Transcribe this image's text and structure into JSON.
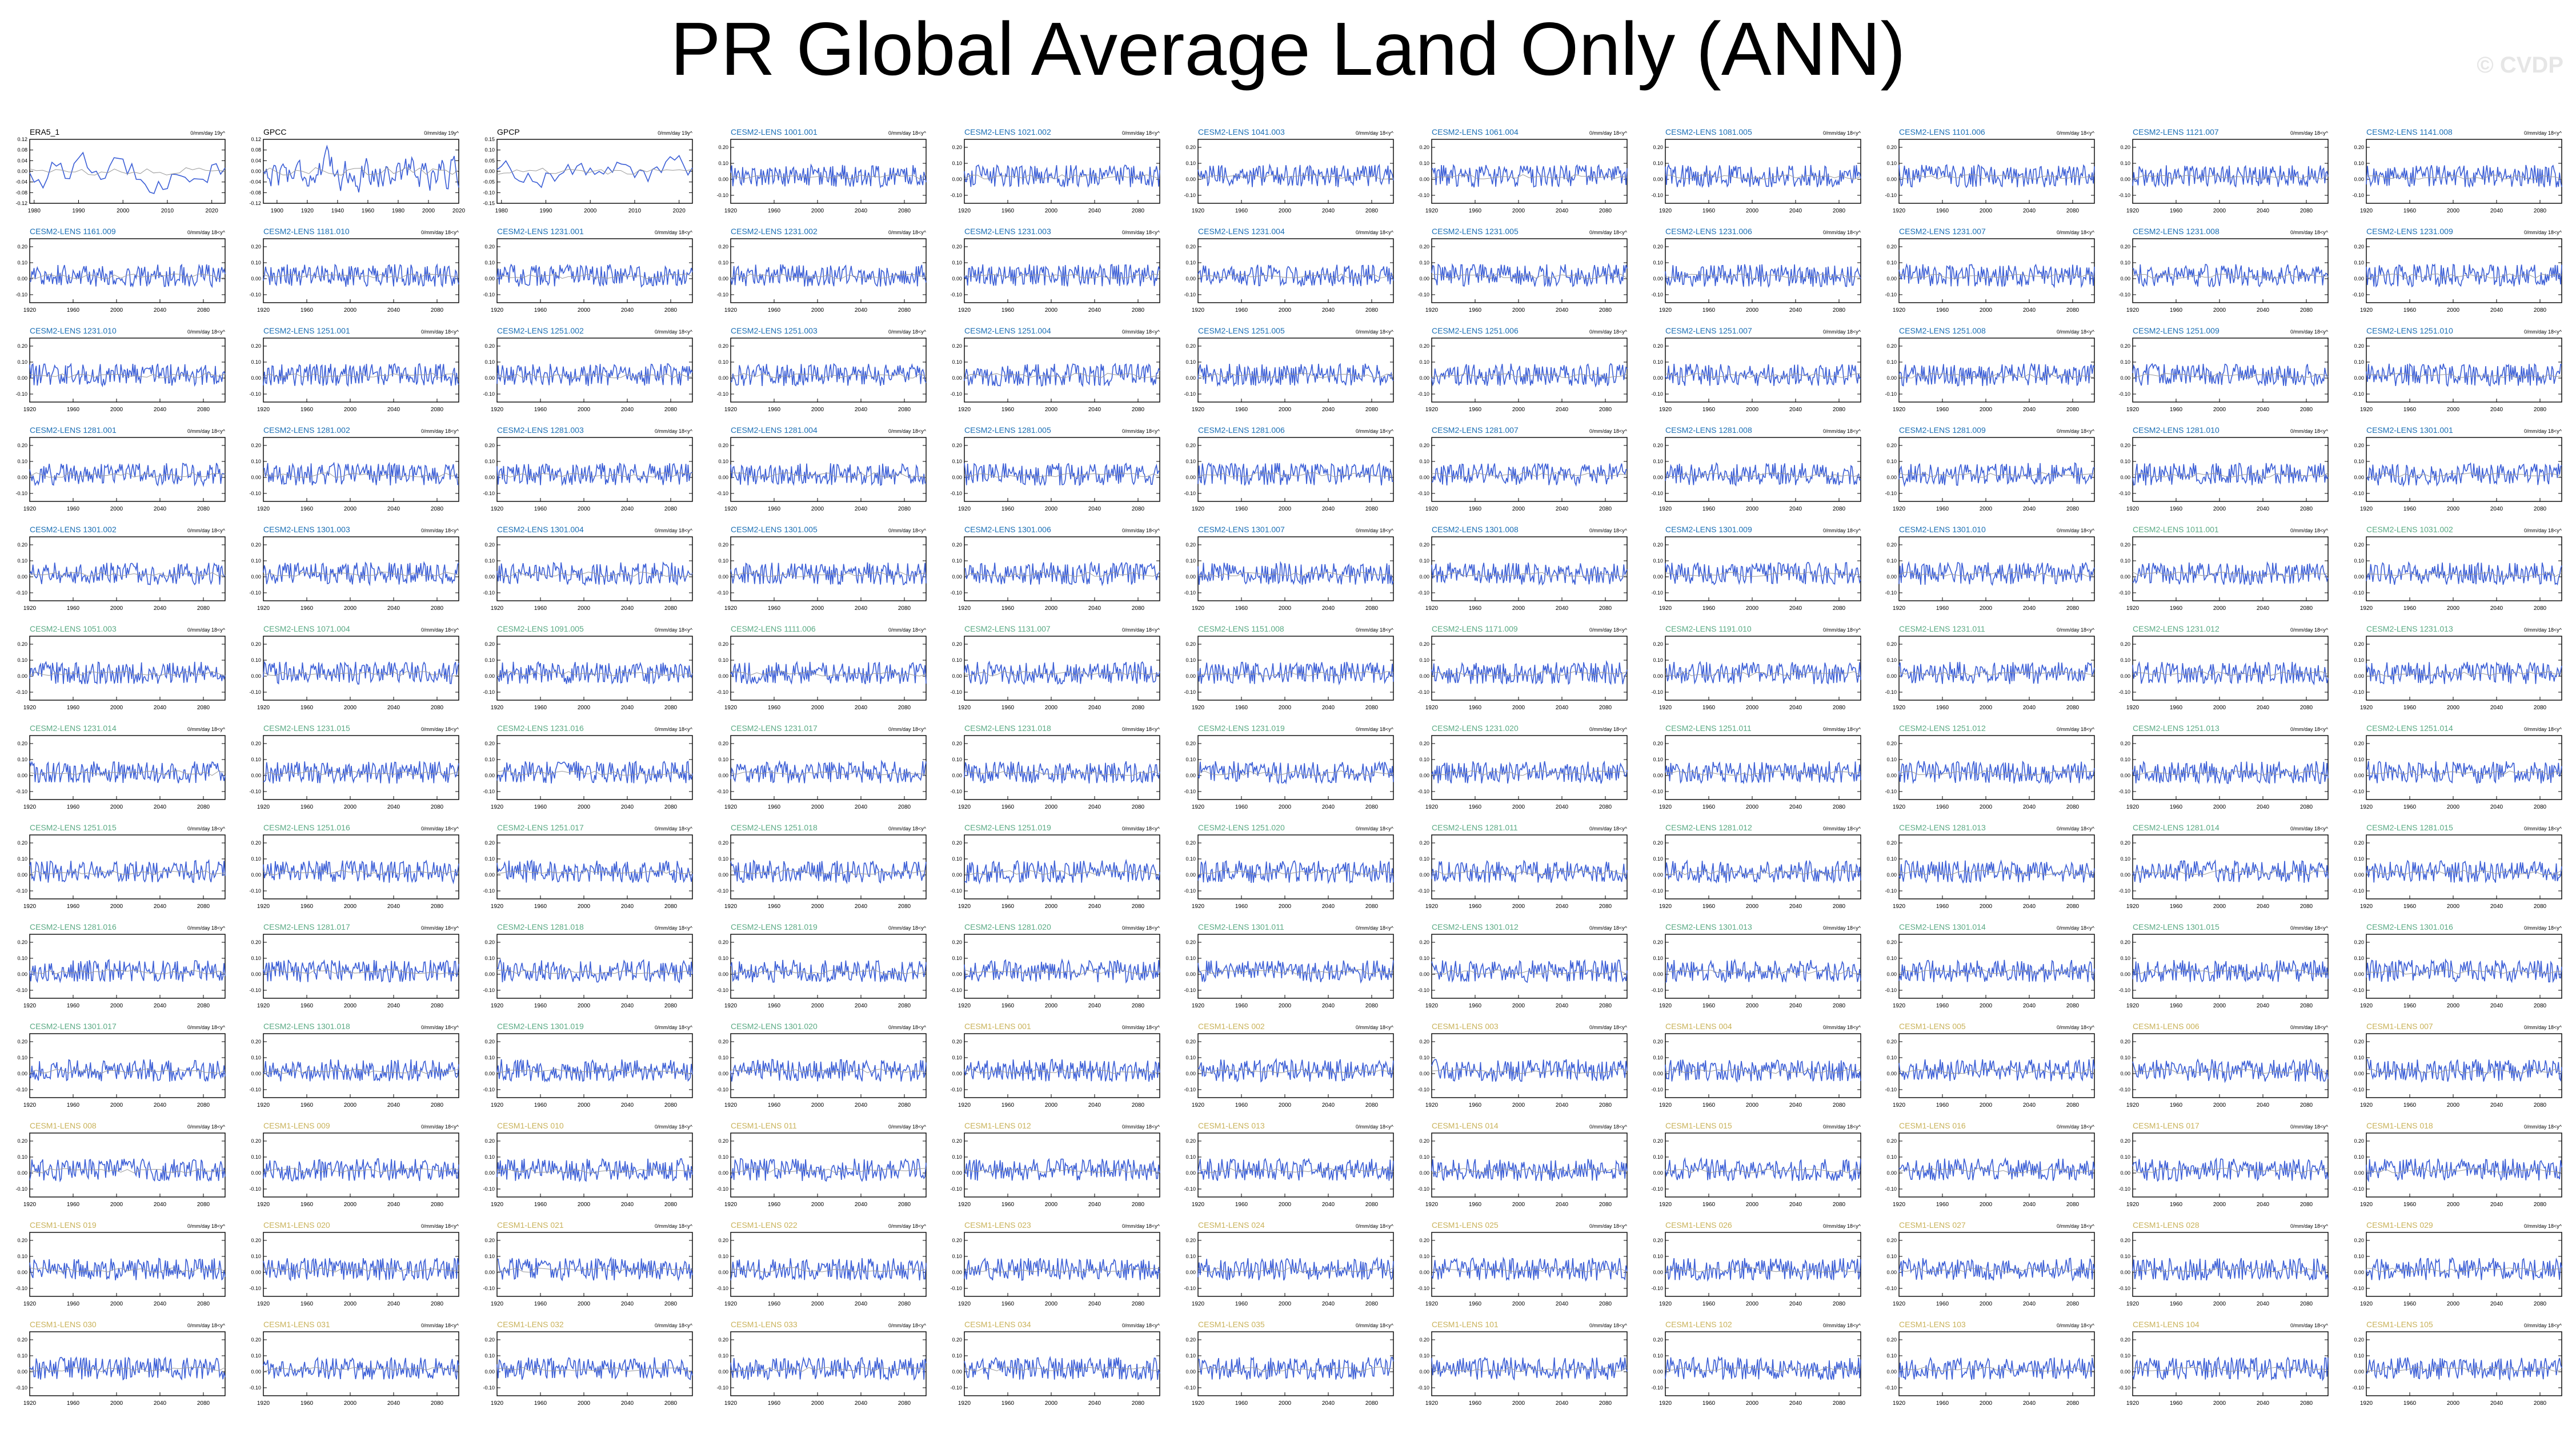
{
  "title": "PR Global Average Land Only (ANN)",
  "credit": "© CVDP",
  "units_obs": "0/mm/day 19y^",
  "units_model": "0/mm/day 18<y^",
  "colors": {
    "series": "#3b5ed6",
    "title_obs": "#000000",
    "title_blue": "#1b6fb5",
    "title_green": "#5aaa84",
    "title_yellow": "#c9b25a",
    "title_lightgreen": "#99c88f",
    "frame": "#000000"
  },
  "chart_data": [
    {
      "type": "line",
      "title": "ERA5_1",
      "title_color": "obs",
      "xticks": [
        1980,
        1990,
        2000,
        2010,
        2020
      ],
      "xlim": [
        1979,
        2023
      ],
      "ylim": [
        -0.12,
        0.12
      ],
      "yticks": [
        -0.12,
        -0.08,
        -0.04,
        0,
        0.04,
        0.08,
        0.12
      ],
      "ytick_labels": [
        "-0.12",
        "-0.08",
        "-0.04",
        "0.00",
        "0.04",
        "0.08",
        "0.12"
      ]
    },
    {
      "type": "line",
      "title": "GPCC",
      "title_color": "obs",
      "xticks": [
        1900,
        1920,
        1940,
        1960,
        1980,
        2000,
        2020
      ],
      "xlim": [
        1891,
        2020
      ],
      "ylim": [
        -0.12,
        0.12
      ],
      "yticks": [
        -0.12,
        -0.08,
        -0.04,
        0,
        0.04,
        0.08,
        0.12
      ],
      "ytick_labels": [
        "-0.12",
        "-0.08",
        "-0.04",
        "0.00",
        "0.04",
        "0.08",
        "0.12"
      ]
    },
    {
      "type": "line",
      "title": "GPCP",
      "title_color": "obs",
      "xticks": [
        1980,
        1990,
        2000,
        2010,
        2020
      ],
      "xlim": [
        1979,
        2023
      ],
      "ylim": [
        -0.15,
        0.15
      ],
      "yticks": [
        -0.15,
        -0.1,
        -0.05,
        0,
        0.05,
        0.1,
        0.15
      ],
      "ytick_labels": [
        "-0.15",
        "-0.10",
        "-0.05",
        "0.00",
        "0.05",
        "0.10",
        "0.15"
      ]
    },
    {
      "type": "line",
      "title": "CESM2-LENS 1001.001",
      "title_color": "blue"
    },
    {
      "type": "line",
      "title": "CESM2-LENS 1021.002",
      "title_color": "blue"
    },
    {
      "type": "line",
      "title": "CESM2-LENS 1041.003",
      "title_color": "blue"
    },
    {
      "type": "line",
      "title": "CESM2-LENS 1061.004",
      "title_color": "blue"
    },
    {
      "type": "line",
      "title": "CESM2-LENS 1081.005",
      "title_color": "blue"
    },
    {
      "type": "line",
      "title": "CESM2-LENS 1101.006",
      "title_color": "blue"
    },
    {
      "type": "line",
      "title": "CESM2-LENS 1121.007",
      "title_color": "blue"
    },
    {
      "type": "line",
      "title": "CESM2-LENS 1141.008",
      "title_color": "blue"
    },
    {
      "type": "line",
      "title": "CESM2-LENS 1161.009",
      "title_color": "blue"
    },
    {
      "type": "line",
      "title": "CESM2-LENS 1181.010",
      "title_color": "blue"
    },
    {
      "type": "line",
      "title": "CESM2-LENS 1231.001",
      "title_color": "blue"
    },
    {
      "type": "line",
      "title": "CESM2-LENS 1231.002",
      "title_color": "blue"
    },
    {
      "type": "line",
      "title": "CESM2-LENS 1231.003",
      "title_color": "blue"
    },
    {
      "type": "line",
      "title": "CESM2-LENS 1231.004",
      "title_color": "blue"
    },
    {
      "type": "line",
      "title": "CESM2-LENS 1231.005",
      "title_color": "blue"
    },
    {
      "type": "line",
      "title": "CESM2-LENS 1231.006",
      "title_color": "blue"
    },
    {
      "type": "line",
      "title": "CESM2-LENS 1231.007",
      "title_color": "blue"
    },
    {
      "type": "line",
      "title": "CESM2-LENS 1231.008",
      "title_color": "blue"
    },
    {
      "type": "line",
      "title": "CESM2-LENS 1231.009",
      "title_color": "blue"
    },
    {
      "type": "line",
      "title": "CESM2-LENS 1231.010",
      "title_color": "blue"
    },
    {
      "type": "line",
      "title": "CESM2-LENS 1251.001",
      "title_color": "blue"
    },
    {
      "type": "line",
      "title": "CESM2-LENS 1251.002",
      "title_color": "blue"
    },
    {
      "type": "line",
      "title": "CESM2-LENS 1251.003",
      "title_color": "blue"
    },
    {
      "type": "line",
      "title": "CESM2-LENS 1251.004",
      "title_color": "blue"
    },
    {
      "type": "line",
      "title": "CESM2-LENS 1251.005",
      "title_color": "blue"
    },
    {
      "type": "line",
      "title": "CESM2-LENS 1251.006",
      "title_color": "blue"
    },
    {
      "type": "line",
      "title": "CESM2-LENS 1251.007",
      "title_color": "blue"
    },
    {
      "type": "line",
      "title": "CESM2-LENS 1251.008",
      "title_color": "blue"
    },
    {
      "type": "line",
      "title": "CESM2-LENS 1251.009",
      "title_color": "blue"
    },
    {
      "type": "line",
      "title": "CESM2-LENS 1251.010",
      "title_color": "blue"
    },
    {
      "type": "line",
      "title": "CESM2-LENS 1281.001",
      "title_color": "blue"
    },
    {
      "type": "line",
      "title": "CESM2-LENS 1281.002",
      "title_color": "blue"
    },
    {
      "type": "line",
      "title": "CESM2-LENS 1281.003",
      "title_color": "blue"
    },
    {
      "type": "line",
      "title": "CESM2-LENS 1281.004",
      "title_color": "blue"
    },
    {
      "type": "line",
      "title": "CESM2-LENS 1281.005",
      "title_color": "blue"
    },
    {
      "type": "line",
      "title": "CESM2-LENS 1281.006",
      "title_color": "blue"
    },
    {
      "type": "line",
      "title": "CESM2-LENS 1281.007",
      "title_color": "blue"
    },
    {
      "type": "line",
      "title": "CESM2-LENS 1281.008",
      "title_color": "blue"
    },
    {
      "type": "line",
      "title": "CESM2-LENS 1281.009",
      "title_color": "blue"
    },
    {
      "type": "line",
      "title": "CESM2-LENS 1281.010",
      "title_color": "blue"
    },
    {
      "type": "line",
      "title": "CESM2-LENS 1301.001",
      "title_color": "blue"
    },
    {
      "type": "line",
      "title": "CESM2-LENS 1301.002",
      "title_color": "blue"
    },
    {
      "type": "line",
      "title": "CESM2-LENS 1301.003",
      "title_color": "blue"
    },
    {
      "type": "line",
      "title": "CESM2-LENS 1301.004",
      "title_color": "blue"
    },
    {
      "type": "line",
      "title": "CESM2-LENS 1301.005",
      "title_color": "blue"
    },
    {
      "type": "line",
      "title": "CESM2-LENS 1301.006",
      "title_color": "blue"
    },
    {
      "type": "line",
      "title": "CESM2-LENS 1301.007",
      "title_color": "blue"
    },
    {
      "type": "line",
      "title": "CESM2-LENS 1301.008",
      "title_color": "blue"
    },
    {
      "type": "line",
      "title": "CESM2-LENS 1301.009",
      "title_color": "blue"
    },
    {
      "type": "line",
      "title": "CESM2-LENS 1301.010",
      "title_color": "blue"
    },
    {
      "type": "line",
      "title": "CESM2-LENS 1011.001",
      "title_color": "green"
    },
    {
      "type": "line",
      "title": "CESM2-LENS 1031.002",
      "title_color": "green"
    },
    {
      "type": "line",
      "title": "CESM2-LENS 1051.003",
      "title_color": "green"
    },
    {
      "type": "line",
      "title": "CESM2-LENS 1071.004",
      "title_color": "green"
    },
    {
      "type": "line",
      "title": "CESM2-LENS 1091.005",
      "title_color": "green"
    },
    {
      "type": "line",
      "title": "CESM2-LENS 1111.006",
      "title_color": "green"
    },
    {
      "type": "line",
      "title": "CESM2-LENS 1131.007",
      "title_color": "green"
    },
    {
      "type": "line",
      "title": "CESM2-LENS 1151.008",
      "title_color": "green"
    },
    {
      "type": "line",
      "title": "CESM2-LENS 1171.009",
      "title_color": "green"
    },
    {
      "type": "line",
      "title": "CESM2-LENS 1191.010",
      "title_color": "green"
    },
    {
      "type": "line",
      "title": "CESM2-LENS 1231.011",
      "title_color": "green"
    },
    {
      "type": "line",
      "title": "CESM2-LENS 1231.012",
      "title_color": "green"
    },
    {
      "type": "line",
      "title": "CESM2-LENS 1231.013",
      "title_color": "green"
    },
    {
      "type": "line",
      "title": "CESM2-LENS 1231.014",
      "title_color": "green"
    },
    {
      "type": "line",
      "title": "CESM2-LENS 1231.015",
      "title_color": "green"
    },
    {
      "type": "line",
      "title": "CESM2-LENS 1231.016",
      "title_color": "green"
    },
    {
      "type": "line",
      "title": "CESM2-LENS 1231.017",
      "title_color": "green"
    },
    {
      "type": "line",
      "title": "CESM2-LENS 1231.018",
      "title_color": "green"
    },
    {
      "type": "line",
      "title": "CESM2-LENS 1231.019",
      "title_color": "green"
    },
    {
      "type": "line",
      "title": "CESM2-LENS 1231.020",
      "title_color": "green"
    },
    {
      "type": "line",
      "title": "CESM2-LENS 1251.011",
      "title_color": "green"
    },
    {
      "type": "line",
      "title": "CESM2-LENS 1251.012",
      "title_color": "green"
    },
    {
      "type": "line",
      "title": "CESM2-LENS 1251.013",
      "title_color": "green"
    },
    {
      "type": "line",
      "title": "CESM2-LENS 1251.014",
      "title_color": "green"
    },
    {
      "type": "line",
      "title": "CESM2-LENS 1251.015",
      "title_color": "green"
    },
    {
      "type": "line",
      "title": "CESM2-LENS 1251.016",
      "title_color": "green"
    },
    {
      "type": "line",
      "title": "CESM2-LENS 1251.017",
      "title_color": "green"
    },
    {
      "type": "line",
      "title": "CESM2-LENS 1251.018",
      "title_color": "green"
    },
    {
      "type": "line",
      "title": "CESM2-LENS 1251.019",
      "title_color": "green"
    },
    {
      "type": "line",
      "title": "CESM2-LENS 1251.020",
      "title_color": "green"
    },
    {
      "type": "line",
      "title": "CESM2-LENS 1281.011",
      "title_color": "green"
    },
    {
      "type": "line",
      "title": "CESM2-LENS 1281.012",
      "title_color": "green"
    },
    {
      "type": "line",
      "title": "CESM2-LENS 1281.013",
      "title_color": "green"
    },
    {
      "type": "line",
      "title": "CESM2-LENS 1281.014",
      "title_color": "green"
    },
    {
      "type": "line",
      "title": "CESM2-LENS 1281.015",
      "title_color": "green"
    },
    {
      "type": "line",
      "title": "CESM2-LENS 1281.016",
      "title_color": "green"
    },
    {
      "type": "line",
      "title": "CESM2-LENS 1281.017",
      "title_color": "green"
    },
    {
      "type": "line",
      "title": "CESM2-LENS 1281.018",
      "title_color": "green"
    },
    {
      "type": "line",
      "title": "CESM2-LENS 1281.019",
      "title_color": "green"
    },
    {
      "type": "line",
      "title": "CESM2-LENS 1281.020",
      "title_color": "green"
    },
    {
      "type": "line",
      "title": "CESM2-LENS 1301.011",
      "title_color": "green"
    },
    {
      "type": "line",
      "title": "CESM2-LENS 1301.012",
      "title_color": "green"
    },
    {
      "type": "line",
      "title": "CESM2-LENS 1301.013",
      "title_color": "green"
    },
    {
      "type": "line",
      "title": "CESM2-LENS 1301.014",
      "title_color": "green"
    },
    {
      "type": "line",
      "title": "CESM2-LENS 1301.015",
      "title_color": "green"
    },
    {
      "type": "line",
      "title": "CESM2-LENS 1301.016",
      "title_color": "green"
    },
    {
      "type": "line",
      "title": "CESM2-LENS 1301.017",
      "title_color": "green"
    },
    {
      "type": "line",
      "title": "CESM2-LENS 1301.018",
      "title_color": "green"
    },
    {
      "type": "line",
      "title": "CESM2-LENS 1301.019",
      "title_color": "green"
    },
    {
      "type": "line",
      "title": "CESM2-LENS 1301.020",
      "title_color": "green"
    },
    {
      "type": "line",
      "title": "CESM1-LENS 001",
      "title_color": "yellow"
    },
    {
      "type": "line",
      "title": "CESM1-LENS 002",
      "title_color": "yellow"
    },
    {
      "type": "line",
      "title": "CESM1-LENS 003",
      "title_color": "yellow"
    },
    {
      "type": "line",
      "title": "CESM1-LENS 004",
      "title_color": "yellow"
    },
    {
      "type": "line",
      "title": "CESM1-LENS 005",
      "title_color": "yellow"
    },
    {
      "type": "line",
      "title": "CESM1-LENS 006",
      "title_color": "yellow"
    },
    {
      "type": "line",
      "title": "CESM1-LENS 007",
      "title_color": "yellow"
    },
    {
      "type": "line",
      "title": "CESM1-LENS 008",
      "title_color": "yellow"
    },
    {
      "type": "line",
      "title": "CESM1-LENS 009",
      "title_color": "yellow"
    },
    {
      "type": "line",
      "title": "CESM1-LENS 010",
      "title_color": "yellow"
    },
    {
      "type": "line",
      "title": "CESM1-LENS 011",
      "title_color": "yellow"
    },
    {
      "type": "line",
      "title": "CESM1-LENS 012",
      "title_color": "yellow"
    },
    {
      "type": "line",
      "title": "CESM1-LENS 013",
      "title_color": "yellow"
    },
    {
      "type": "line",
      "title": "CESM1-LENS 014",
      "title_color": "yellow"
    },
    {
      "type": "line",
      "title": "CESM1-LENS 015",
      "title_color": "yellow"
    },
    {
      "type": "line",
      "title": "CESM1-LENS 016",
      "title_color": "yellow"
    },
    {
      "type": "line",
      "title": "CESM1-LENS 017",
      "title_color": "yellow"
    },
    {
      "type": "line",
      "title": "CESM1-LENS 018",
      "title_color": "yellow"
    },
    {
      "type": "line",
      "title": "CESM1-LENS 019",
      "title_color": "yellow"
    },
    {
      "type": "line",
      "title": "CESM1-LENS 020",
      "title_color": "yellow"
    },
    {
      "type": "line",
      "title": "CESM1-LENS 021",
      "title_color": "yellow"
    },
    {
      "type": "line",
      "title": "CESM1-LENS 022",
      "title_color": "yellow"
    },
    {
      "type": "line",
      "title": "CESM1-LENS 023",
      "title_color": "yellow"
    },
    {
      "type": "line",
      "title": "CESM1-LENS 024",
      "title_color": "yellow"
    },
    {
      "type": "line",
      "title": "CESM1-LENS 025",
      "title_color": "yellow"
    },
    {
      "type": "line",
      "title": "CESM1-LENS 026",
      "title_color": "yellow"
    },
    {
      "type": "line",
      "title": "CESM1-LENS 027",
      "title_color": "yellow"
    },
    {
      "type": "line",
      "title": "CESM1-LENS 028",
      "title_color": "yellow"
    },
    {
      "type": "line",
      "title": "CESM1-LENS 029",
      "title_color": "yellow"
    },
    {
      "type": "line",
      "title": "CESM1-LENS 030",
      "title_color": "yellow"
    },
    {
      "type": "line",
      "title": "CESM1-LENS 031",
      "title_color": "yellow"
    },
    {
      "type": "line",
      "title": "CESM1-LENS 032",
      "title_color": "yellow"
    },
    {
      "type": "line",
      "title": "CESM1-LENS 033",
      "title_color": "yellow"
    },
    {
      "type": "line",
      "title": "CESM1-LENS 034",
      "title_color": "yellow"
    },
    {
      "type": "line",
      "title": "CESM1-LENS 035",
      "title_color": "yellow"
    },
    {
      "type": "line",
      "title": "CESM1-LENS 101",
      "title_color": "yellow"
    },
    {
      "type": "line",
      "title": "CESM1-LENS 102",
      "title_color": "yellow"
    },
    {
      "type": "line",
      "title": "CESM1-LENS 103",
      "title_color": "yellow"
    },
    {
      "type": "line",
      "title": "CESM1-LENS 104",
      "title_color": "yellow"
    },
    {
      "type": "line",
      "title": "CESM1-LENS 105",
      "title_color": "yellow"
    }
  ],
  "model_axes": {
    "xticks": [
      1920,
      1960,
      2000,
      2040,
      2080
    ],
    "xlim": [
      1920,
      2100
    ],
    "ylim": [
      -0.15,
      0.25
    ],
    "yticks": [
      -0.1,
      0.0,
      0.1,
      0.2
    ],
    "ytick_labels": [
      "-0.10",
      "0.00",
      "0.10",
      "0.20"
    ]
  }
}
